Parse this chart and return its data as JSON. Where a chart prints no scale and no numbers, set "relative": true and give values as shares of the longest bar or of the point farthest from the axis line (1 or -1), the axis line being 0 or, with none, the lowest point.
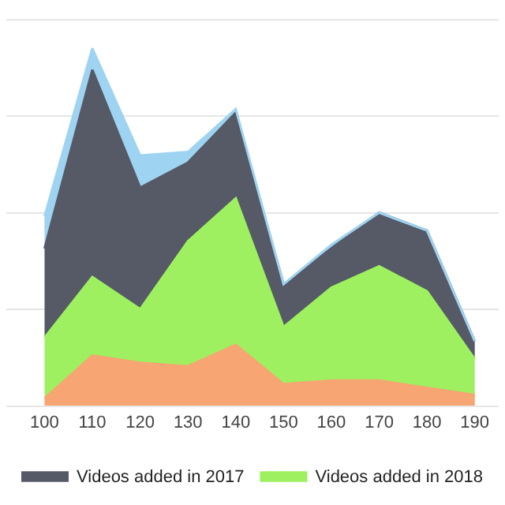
{
  "chart_data": {
    "type": "area",
    "stacked": true,
    "relative": true,
    "grid": "y",
    "legend": "bottom",
    "marker": "none",
    "x": [
      100,
      110,
      120,
      130,
      140,
      150,
      160,
      170,
      180,
      190
    ],
    "xlim": [
      92,
      195
    ],
    "xticks": [
      100,
      110,
      120,
      130,
      140,
      150,
      160,
      170,
      180,
      190
    ],
    "series": [
      {
        "color": "#f7a572",
        "values": [
          0.02,
          0.14,
          0.12,
          0.11,
          0.17,
          0.06,
          0.07,
          0.07,
          0.05,
          0.03
        ]
      },
      {
        "name": "Videos added in 2018",
        "color": "#9ef060",
        "values": [
          0.17,
          0.22,
          0.15,
          0.35,
          0.41,
          0.16,
          0.26,
          0.32,
          0.27,
          0.1
        ]
      },
      {
        "name": "Videos added in 2017",
        "color": "#555a66",
        "values": [
          0.25,
          0.58,
          0.34,
          0.22,
          0.24,
          0.12,
          0.11,
          0.15,
          0.17,
          0.05
        ]
      },
      {
        "color": "#9fd3f2",
        "values": [
          0.09,
          0.06,
          0.09,
          0.03,
          0.01,
          0.0,
          0.01,
          0.0,
          0.0,
          0.0
        ]
      }
    ]
  }
}
